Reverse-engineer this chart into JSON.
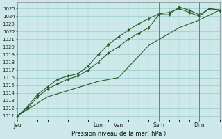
{
  "title": "",
  "xlabel": "Pression niveau de la mer( hPa )",
  "ylabel": "",
  "bg_color": "#cce8e8",
  "grid_color": "#99cccc",
  "line_color": "#2d5a2d",
  "ylim": [
    1010.5,
    1025.8
  ],
  "yticks": [
    1011,
    1012,
    1013,
    1014,
    1015,
    1016,
    1017,
    1018,
    1019,
    1020,
    1021,
    1022,
    1023,
    1024,
    1025
  ],
  "x_day_labels": [
    "Jeu",
    "Lun",
    "Ven",
    "Sam",
    "Dim"
  ],
  "x_day_positions": [
    0,
    4,
    5,
    7,
    9
  ],
  "xlim": [
    0,
    10
  ],
  "line1_x": [
    0,
    0.5,
    1.0,
    1.5,
    2.0,
    2.5,
    3.0,
    3.5,
    4.0,
    4.5,
    5.0,
    5.5,
    6.0,
    6.5,
    7.0,
    7.5,
    8.0,
    8.5,
    9.0,
    9.5,
    10.0
  ],
  "line1_y": [
    1011,
    1012,
    1013.5,
    1014.5,
    1015.2,
    1015.8,
    1016.2,
    1017.0,
    1018.0,
    1019.2,
    1020.0,
    1021.0,
    1021.8,
    1022.5,
    1024.2,
    1024.2,
    1025.2,
    1024.8,
    1024.2,
    1025.0,
    1024.8
  ],
  "line2_x": [
    0,
    0.5,
    1.0,
    1.5,
    2.0,
    2.5,
    3.0,
    3.5,
    4.0,
    4.5,
    5.0,
    5.5,
    6.0,
    6.5,
    7.0,
    7.5,
    8.0,
    8.5,
    9.0,
    9.5,
    10.0
  ],
  "line2_y": [
    1011,
    1012.2,
    1013.8,
    1014.8,
    1015.8,
    1016.2,
    1016.5,
    1017.5,
    1019.0,
    1020.3,
    1021.3,
    1022.2,
    1023.0,
    1023.7,
    1024.3,
    1024.5,
    1025.0,
    1024.5,
    1024.0,
    1025.0,
    1024.8
  ],
  "line3_x": [
    0,
    1.5,
    4.0,
    5.0,
    6.5,
    8.0,
    9.0,
    10.0
  ],
  "line3_y": [
    1011,
    1013.5,
    1015.5,
    1016.0,
    1020.2,
    1022.5,
    1023.5,
    1024.8
  ],
  "vline_positions": [
    4,
    5,
    7,
    9
  ],
  "ytick_fontsize": 5.0,
  "xtick_fontsize": 5.5,
  "xlabel_fontsize": 6.0
}
